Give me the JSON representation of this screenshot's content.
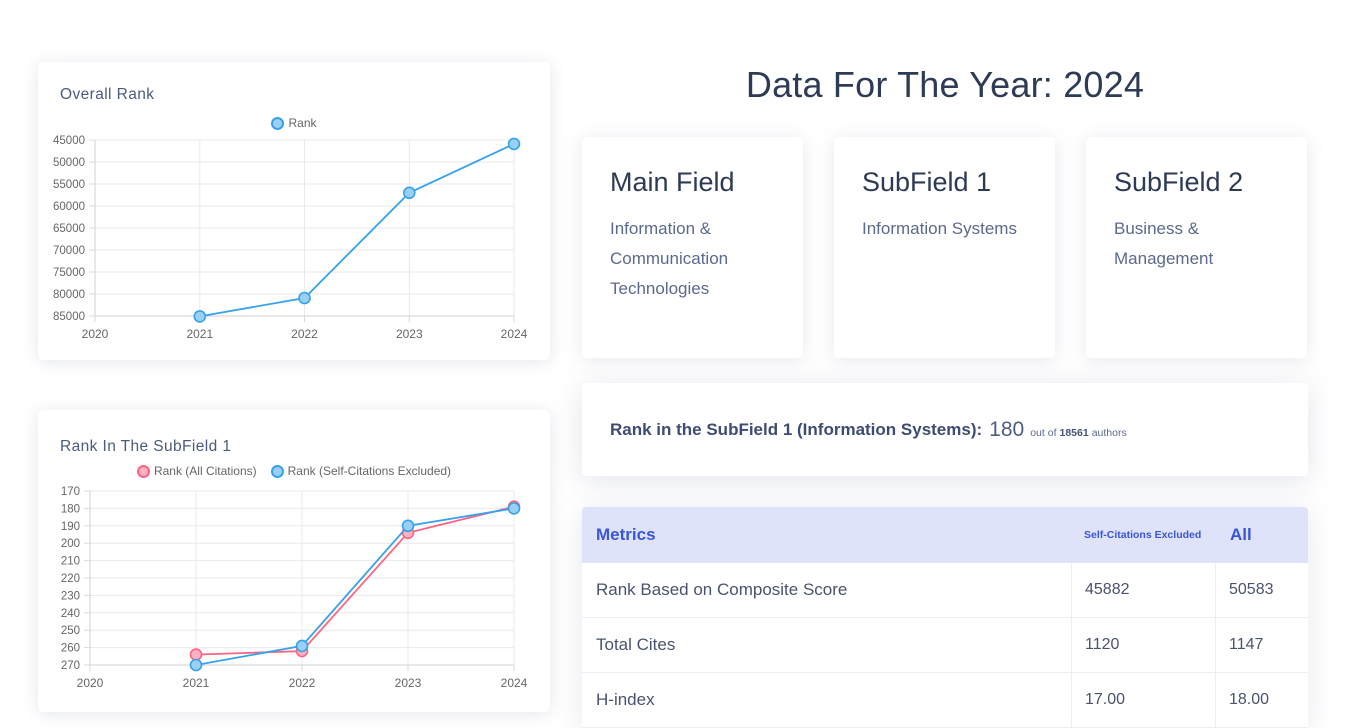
{
  "page": {
    "title": "Data For The Year: 2024"
  },
  "colors": {
    "series_blue": "#36a2eb",
    "series_blue_fill": "#9bd0f5",
    "series_pink": "#ff6384",
    "series_pink_fill": "#ffb1c1",
    "table_header_bg": "#dfe3f9",
    "table_header_text": "#3a55d8",
    "heading_text": "#2e3b55",
    "chart_title_text": "#4c5a7d"
  },
  "chart_data": [
    {
      "type": "line",
      "title": "Overall Rank",
      "categories": [
        "2020",
        "2021",
        "2022",
        "2023",
        "2024"
      ],
      "series": [
        {
          "name": "Rank",
          "color": "#36a2eb",
          "fill": "#9bd0f5",
          "values": [
            null,
            85100,
            80900,
            57000,
            45882
          ]
        }
      ],
      "y_axis": {
        "inverted": true,
        "ticks": [
          45000,
          50000,
          55000,
          60000,
          65000,
          70000,
          75000,
          80000,
          85000
        ]
      },
      "xlabel": "",
      "ylabel": "",
      "grid": true,
      "legend_position": "top"
    },
    {
      "type": "line",
      "title": "Rank In The SubField 1",
      "categories": [
        "2020",
        "2021",
        "2022",
        "2023",
        "2024"
      ],
      "series": [
        {
          "name": "Rank (All Citations)",
          "color": "#ff6384",
          "fill": "#ffb1c1",
          "values": [
            null,
            264,
            262,
            194,
            179
          ]
        },
        {
          "name": "Rank (Self-Citations Excluded)",
          "color": "#36a2eb",
          "fill": "#9bd0f5",
          "values": [
            null,
            270,
            259,
            190,
            180
          ]
        }
      ],
      "y_axis": {
        "inverted": true,
        "ticks": [
          170,
          180,
          190,
          200,
          210,
          220,
          230,
          240,
          250,
          260,
          270
        ]
      },
      "xlabel": "",
      "ylabel": "",
      "grid": true,
      "legend_position": "top"
    }
  ],
  "fields": {
    "main": {
      "title": "Main Field",
      "value": "Information & Communication Technologies"
    },
    "sub1": {
      "title": "SubField 1",
      "value": "Information Systems"
    },
    "sub2": {
      "title": "SubField 2",
      "value": "Business & Management"
    }
  },
  "rank_statement": {
    "label": "Rank in the SubField 1 (Information Systems):",
    "value": "180",
    "out_of": "out of",
    "total": "18561",
    "suffix": "authors"
  },
  "table": {
    "headers": {
      "metrics": "Metrics",
      "excluded": "Self-Citations Excluded",
      "all": "All"
    },
    "rows": [
      {
        "metric": "Rank Based on Composite Score",
        "excluded": "45882",
        "all": "50583"
      },
      {
        "metric": "Total Cites",
        "excluded": "1120",
        "all": "1147"
      },
      {
        "metric": "H-index",
        "excluded": "17.00",
        "all": "18.00"
      }
    ]
  }
}
